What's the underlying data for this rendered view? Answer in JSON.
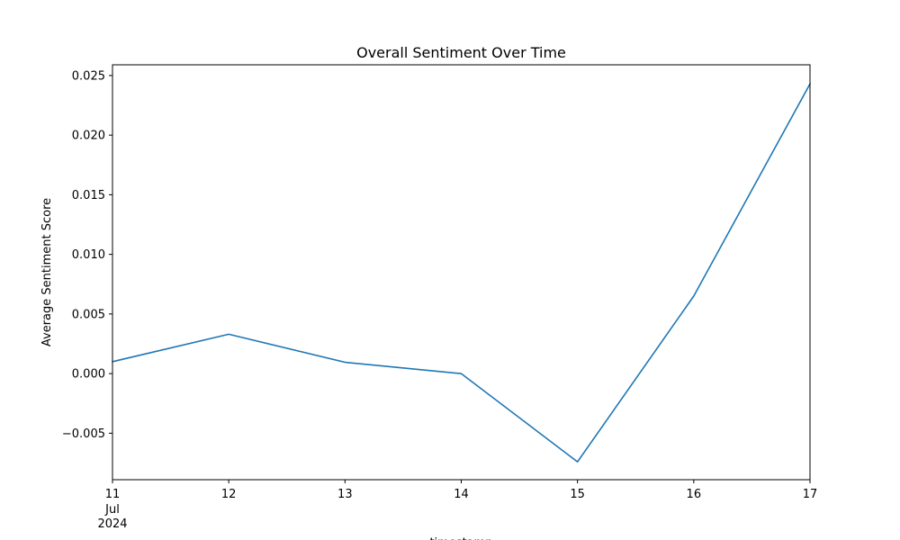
{
  "chart_data": {
    "type": "line",
    "title": "Overall Sentiment Over Time",
    "xlabel": "timestamp",
    "ylabel": "Average Sentiment Score",
    "x": [
      "2024-07-11",
      "2024-07-12",
      "2024-07-13",
      "2024-07-14",
      "2024-07-15",
      "2024-07-16",
      "2024-07-17"
    ],
    "x_tick_labels": [
      "11",
      "12",
      "13",
      "14",
      "15",
      "16",
      "17"
    ],
    "x_tick_sublabels": [
      "Jul",
      "2024"
    ],
    "series": [
      {
        "values": [
          0.001,
          0.0033,
          0.00095,
          0.0,
          -0.0074,
          0.0065,
          0.0243
        ]
      }
    ],
    "ylim": [
      -0.0089,
      0.0259
    ],
    "y_ticks": [
      -0.005,
      0.0,
      0.005,
      0.01,
      0.015,
      0.02,
      0.025
    ],
    "y_tick_labels": [
      "−0.005",
      "0.000",
      "0.005",
      "0.010",
      "0.015",
      "0.020",
      "0.025"
    ],
    "grid": false,
    "legend": "none",
    "colors": {
      "series": "#1f77b4",
      "axes": "#000000"
    }
  }
}
